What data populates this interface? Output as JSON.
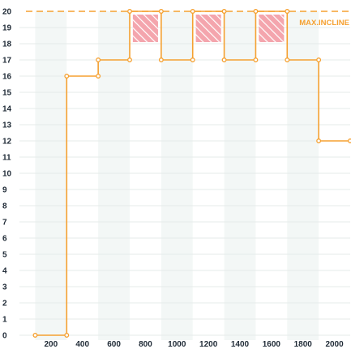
{
  "chart_data": {
    "type": "line",
    "step": true,
    "x": [
      100,
      300,
      300,
      500,
      500,
      700,
      700,
      900,
      900,
      1100,
      1100,
      1300,
      1300,
      1500,
      1500,
      1700,
      1700,
      1900,
      1900,
      2100
    ],
    "y": [
      0,
      0,
      16,
      16,
      17,
      17,
      20,
      20,
      17,
      17,
      20,
      20,
      17,
      17,
      20,
      20,
      17,
      17,
      12,
      12
    ],
    "xlim": [
      0,
      2100
    ],
    "ylim": [
      0,
      20
    ],
    "x_ticks": [
      200,
      400,
      600,
      800,
      1000,
      1200,
      1400,
      1600,
      1800,
      2000
    ],
    "y_ticks": [
      0,
      1,
      2,
      3,
      4,
      5,
      6,
      7,
      8,
      9,
      10,
      11,
      12,
      13,
      14,
      15,
      16,
      17,
      18,
      19,
      20
    ],
    "max_line": {
      "value": 20,
      "label": "MAX.INCLINE"
    },
    "highlight_regions": [
      {
        "x": [
          720,
          880
        ],
        "y": [
          18.1,
          19.8
        ]
      },
      {
        "x": [
          1120,
          1280
        ],
        "y": [
          18.1,
          19.8
        ]
      },
      {
        "x": [
          1520,
          1680
        ],
        "y": [
          18.1,
          19.8
        ]
      }
    ],
    "band_ranges": [
      [
        100,
        300
      ],
      [
        500,
        700
      ],
      [
        900,
        1100
      ],
      [
        1300,
        1500
      ],
      [
        1700,
        1900
      ]
    ],
    "grid": true,
    "colors": {
      "line": "#f5a030",
      "max_line": "#f5a030",
      "highlight_fill": "#f4a5ad",
      "band": "#f3f7f6",
      "grid": "#e6ebea",
      "text": "#1f2a36"
    }
  }
}
